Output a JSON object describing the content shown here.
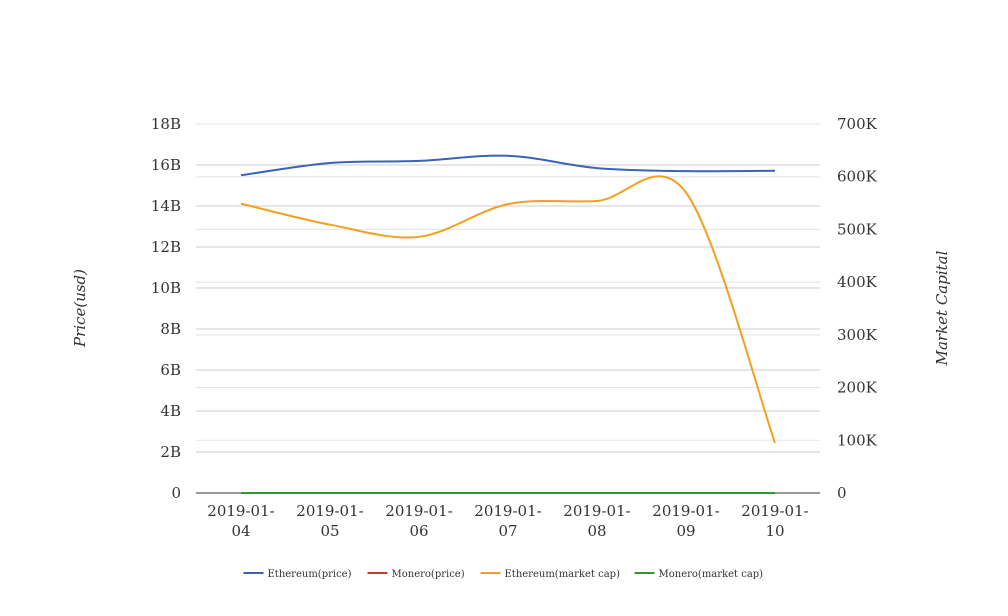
{
  "chart_data": {
    "type": "line",
    "categories": [
      "2019-01-04",
      "2019-01-05",
      "2019-01-06",
      "2019-01-07",
      "2019-01-08",
      "2019-01-09",
      "2019-01-10"
    ],
    "category_lines": [
      [
        "2019-01-",
        "04"
      ],
      [
        "2019-01-",
        "05"
      ],
      [
        "2019-01-",
        "06"
      ],
      [
        "2019-01-",
        "07"
      ],
      [
        "2019-01-",
        "08"
      ],
      [
        "2019-01-",
        "09"
      ],
      [
        "2019-01-",
        "10"
      ]
    ],
    "y_left": {
      "label": "Price(usd)",
      "ylim": [
        0,
        18000000000
      ],
      "ticks": [
        0,
        2000000000,
        4000000000,
        6000000000,
        8000000000,
        10000000000,
        12000000000,
        14000000000,
        16000000000,
        18000000000
      ],
      "tick_labels": [
        "0",
        "2B",
        "4B",
        "6B",
        "8B",
        "10B",
        "12B",
        "14B",
        "16B",
        "18B"
      ]
    },
    "y_right": {
      "label": "Market Capital",
      "ylim": [
        0,
        700000
      ],
      "ticks": [
        0,
        100000,
        200000,
        300000,
        400000,
        500000,
        600000,
        700000
      ],
      "tick_labels": [
        "0",
        "100K",
        "200K",
        "300K",
        "400K",
        "500K",
        "600K",
        "700K"
      ]
    },
    "series": [
      {
        "name": "Ethereum(price)",
        "axis": "left",
        "color": "#3a62b8",
        "values": [
          15500000000,
          16100000000,
          16200000000,
          16450000000,
          15850000000,
          15700000000,
          15720000000
        ]
      },
      {
        "name": "Monero(price)",
        "axis": "left",
        "color": "#d2352b",
        "values": [
          0,
          0,
          0,
          0,
          0,
          0,
          0
        ]
      },
      {
        "name": "Ethereum(market cap)",
        "axis": "right",
        "color": "#f2a01f",
        "values": [
          549000,
          509000,
          486000,
          548000,
          554000,
          570000,
          95000
        ]
      },
      {
        "name": "Monero(market cap)",
        "axis": "right",
        "color": "#2e9b2e",
        "values": [
          0,
          0,
          0,
          0,
          0,
          0,
          0
        ]
      }
    ],
    "grid": true,
    "legend": "bottom-center"
  }
}
